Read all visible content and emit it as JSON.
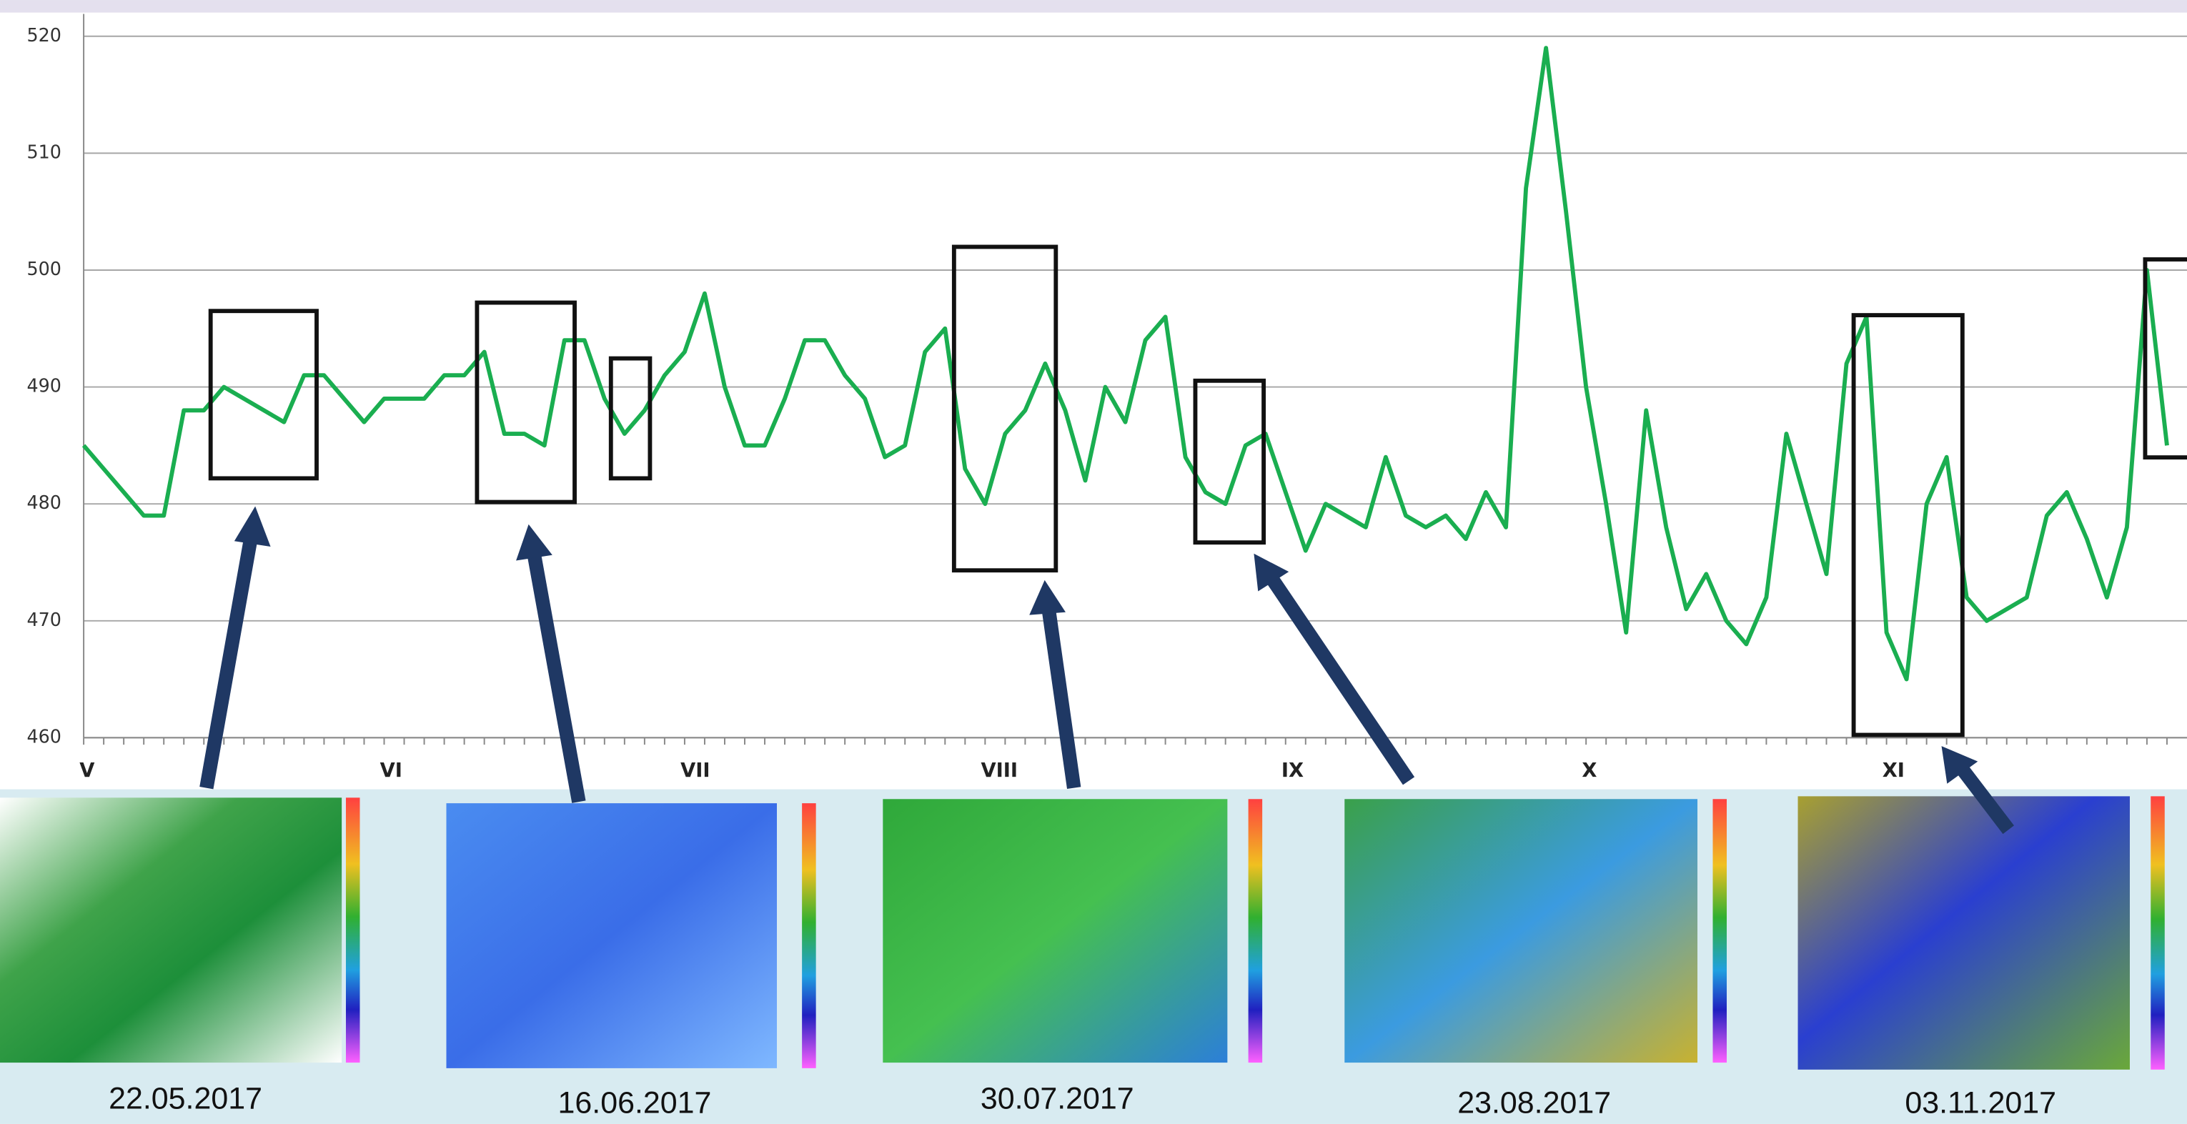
{
  "chart_data": {
    "type": "line",
    "categories": [
      "V",
      null,
      null,
      null,
      null,
      null,
      null,
      null,
      null,
      null,
      null,
      null,
      null,
      null,
      null,
      "VI",
      null,
      null,
      null,
      null,
      null,
      null,
      null,
      null,
      null,
      null,
      null,
      null,
      null,
      null,
      "VII",
      null,
      null,
      null,
      null,
      null,
      null,
      null,
      null,
      null,
      null,
      null,
      null,
      null,
      null,
      "VIII",
      null,
      null,
      null,
      null,
      null,
      null,
      null,
      null,
      null,
      null,
      null,
      null,
      null,
      null,
      "IX",
      null,
      null,
      null,
      null,
      null,
      null,
      null,
      null,
      null,
      null,
      null,
      null,
      null,
      null,
      "X",
      null,
      null,
      null,
      null,
      null,
      null,
      null,
      null,
      null,
      null,
      null,
      null,
      null,
      null,
      "XI",
      null,
      null,
      null,
      null,
      null,
      null,
      null,
      null,
      null,
      null,
      null,
      null,
      null,
      null
    ],
    "values": [
      485,
      483,
      481,
      479,
      479,
      488,
      488,
      490,
      489,
      488,
      487,
      491,
      491,
      489,
      487,
      489,
      489,
      489,
      491,
      491,
      493,
      486,
      486,
      485,
      494,
      494,
      489,
      486,
      488,
      491,
      493,
      498,
      490,
      485,
      485,
      489,
      494,
      494,
      491,
      489,
      484,
      485,
      493,
      495,
      483,
      480,
      486,
      488,
      492,
      488,
      482,
      490,
      487,
      494,
      496,
      484,
      481,
      480,
      485,
      486,
      481,
      476,
      480,
      479,
      478,
      484,
      479,
      478,
      479,
      477,
      481,
      478,
      507,
      519,
      505,
      490,
      480,
      469,
      488,
      478,
      471,
      474,
      470,
      468,
      472,
      486,
      480,
      474,
      492,
      496,
      469,
      465,
      480,
      484,
      472,
      470,
      471,
      472,
      479,
      481,
      477,
      472,
      478,
      500,
      485
    ],
    "color": "#1aae50",
    "ylim": [
      460,
      520
    ],
    "yticks": [
      460,
      470,
      480,
      490,
      500,
      510,
      520
    ],
    "grid": true
  },
  "captions": [
    "22.05.2017",
    "16.06.2017",
    "30.07.2017",
    "23.08.2017",
    "03.11.2017"
  ]
}
